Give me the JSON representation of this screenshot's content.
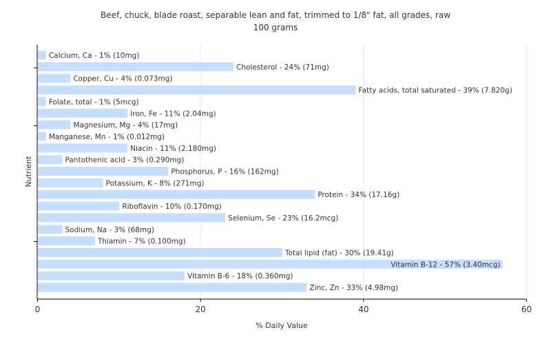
{
  "chart_data": {
    "type": "bar",
    "orientation": "horizontal",
    "title": "Beef, chuck, blade roast, separable lean and fat, trimmed to 1/8\" fat, all grades, raw",
    "subtitle": "100 grams",
    "xlabel": "% Daily Value",
    "ylabel": "Nutrient",
    "xlim": [
      0,
      60
    ],
    "xticks": [
      0,
      20,
      40,
      60
    ],
    "grid": true,
    "bar_color": "#c6deff",
    "categories": [
      "Calcium, Ca",
      "Cholesterol",
      "Copper, Cu",
      "Fatty acids, total saturated",
      "Folate, total",
      "Iron, Fe",
      "Magnesium, Mg",
      "Manganese, Mn",
      "Niacin",
      "Pantothenic acid",
      "Phosphorus, P",
      "Potassium, K",
      "Protein",
      "Riboflavin",
      "Selenium, Se",
      "Sodium, Na",
      "Thiamin",
      "Total lipid (fat)",
      "Vitamin B-12",
      "Vitamin B-6",
      "Zinc, Zn"
    ],
    "values": [
      1,
      24,
      4,
      39,
      1,
      11,
      4,
      1,
      11,
      3,
      16,
      8,
      34,
      10,
      23,
      3,
      7,
      30,
      57,
      18,
      33
    ],
    "labels": [
      "Calcium, Ca - 1% (10mg)",
      "Cholesterol - 24% (71mg)",
      "Copper, Cu - 4% (0.073mg)",
      "Fatty acids, total saturated - 39% (7.820g)",
      "Folate, total - 1% (5mcg)",
      "Iron, Fe - 11% (2.04mg)",
      "Magnesium, Mg - 4% (17mg)",
      "Manganese, Mn - 1% (0.012mg)",
      "Niacin - 11% (2.180mg)",
      "Pantothenic acid - 3% (0.290mg)",
      "Phosphorus, P - 16% (162mg)",
      "Potassium, K - 8% (271mg)",
      "Protein - 34% (17.16g)",
      "Riboflavin - 10% (0.170mg)",
      "Selenium, Se - 23% (16.2mcg)",
      "Sodium, Na - 3% (68mg)",
      "Thiamin - 7% (0.100mg)",
      "Total lipid (fat) - 30% (19.41g)",
      "Vitamin B-12 - 57% (3.40mcg)",
      "Vitamin B-6 - 18% (0.360mg)",
      "Zinc, Zn - 33% (4.98mg)"
    ]
  }
}
